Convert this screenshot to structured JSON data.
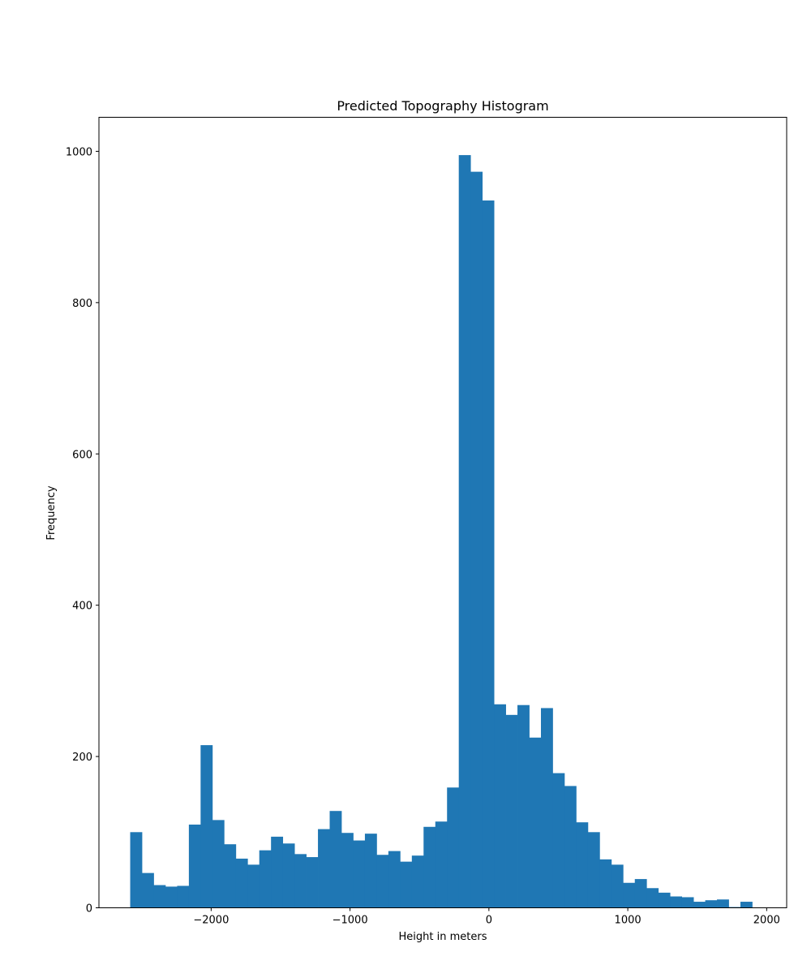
{
  "chart_data": {
    "type": "bar",
    "title": "Predicted Topography Histogram",
    "xlabel": "Height in meters",
    "ylabel": "Frequency",
    "xlim": [
      -2808,
      2144
    ],
    "ylim": [
      0,
      1045
    ],
    "xticks": [
      -2000,
      -1000,
      0,
      1000,
      2000
    ],
    "xtick_labels": [
      "−2000",
      "−1000",
      "0",
      "1000",
      "2000"
    ],
    "yticks": [
      0,
      200,
      400,
      600,
      800,
      1000
    ],
    "ytick_labels": [
      "0",
      "200",
      "400",
      "600",
      "800",
      "1000"
    ],
    "bin_start": -2583,
    "bin_width": 84.5,
    "values": [
      100,
      46,
      30,
      28,
      29,
      110,
      215,
      116,
      84,
      65,
      57,
      76,
      94,
      85,
      71,
      67,
      104,
      128,
      99,
      89,
      98,
      70,
      75,
      61,
      69,
      107,
      114,
      159,
      995,
      973,
      935,
      269,
      255,
      268,
      225,
      264,
      178,
      161,
      113,
      100,
      64,
      57,
      33,
      38,
      26,
      20,
      15,
      14,
      8,
      10,
      11,
      1,
      8
    ],
    "grid": false,
    "color": "#1f77b4"
  }
}
